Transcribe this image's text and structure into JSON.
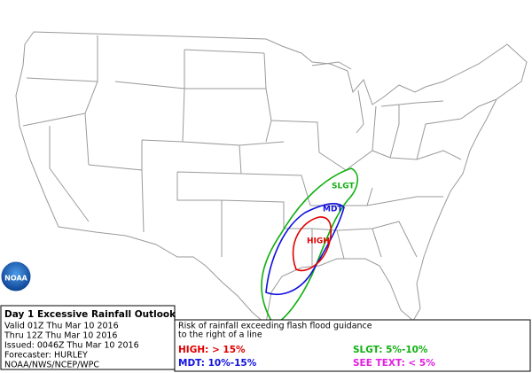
{
  "logo": "NOAA",
  "map": {
    "risk_labels": [
      "SLGT",
      "MDT",
      "HIGH"
    ]
  },
  "info": {
    "title": "Day 1 Excessive Rainfall Outlook",
    "lines": [
      "Valid 01Z Thu Mar 10 2016",
      "Thru 12Z Thu Mar 10 2016",
      "Issued: 0046Z Thu Mar 10 2016",
      "Forecaster: HURLEY",
      "NOAA/NWS/NCEP/WPC"
    ]
  },
  "legend": {
    "description": [
      "Risk of rainfall exceeding flash flood guidance",
      "to the right of a line"
    ],
    "items": [
      {
        "label": "HIGH: > 15%",
        "color": "#e00000"
      },
      {
        "label": "SLGT: 5%-10%",
        "color": "#10b010"
      },
      {
        "label": "MDT: 10%-15%",
        "color": "#1010e0"
      },
      {
        "label": "SEE TEXT: < 5%",
        "color": "#e020e0"
      }
    ]
  }
}
